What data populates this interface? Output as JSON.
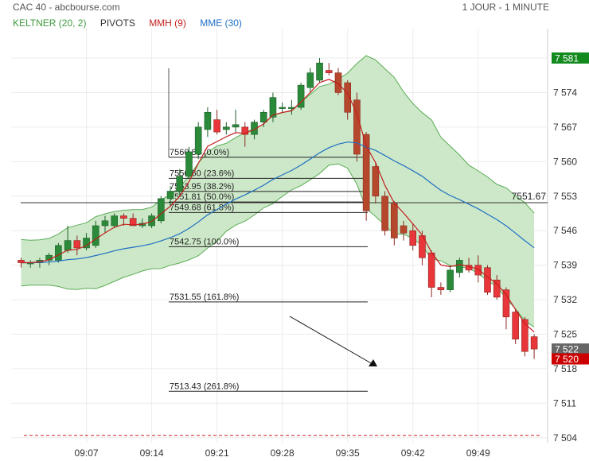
{
  "header": {
    "instrument": "CAC 40 - abcbourse.com",
    "period": "1 JOUR - 1 MINUTE"
  },
  "legend": [
    {
      "label": "KELTNER (20, 2)",
      "color": "#3c9a3c"
    },
    {
      "label": "PIVOTS",
      "color": "#333333"
    },
    {
      "label": "MMH (9)",
      "color": "#c41e1e"
    },
    {
      "label": "MME (30)",
      "color": "#1f6fc4"
    }
  ],
  "chart_data": {
    "type": "candlestick",
    "yticks": [
      "7 504",
      "7 511",
      "7 518",
      "7 525",
      "7 532",
      "7 539",
      "7 546",
      "7 553",
      "7 560",
      "7 567",
      "7 574",
      "7 581"
    ],
    "ylim": [
      7503,
      7586
    ],
    "xticks": [
      {
        "label": "09:07",
        "minute": 547
      },
      {
        "label": "09:14",
        "minute": 554
      },
      {
        "label": "09:21",
        "minute": 561
      },
      {
        "label": "09:28",
        "minute": 568
      },
      {
        "label": "09:35",
        "minute": 575
      },
      {
        "label": "09:42",
        "minute": 582
      },
      {
        "label": "09:49",
        "minute": 589
      }
    ],
    "candles": [
      {
        "o": 7540.0,
        "h": 7540.5,
        "l": 7538.5,
        "c": 7539.5
      },
      {
        "o": 7539.5,
        "h": 7540.0,
        "l": 7538.5,
        "c": 7539.5
      },
      {
        "o": 7539.5,
        "h": 7540.5,
        "l": 7538.5,
        "c": 7540.0
      },
      {
        "o": 7540.0,
        "h": 7541.5,
        "l": 7539.0,
        "c": 7541.0
      },
      {
        "o": 7540.0,
        "h": 7543.5,
        "l": 7539.5,
        "c": 7543.0
      },
      {
        "o": 7542.0,
        "h": 7547.0,
        "l": 7541.5,
        "c": 7544.0
      },
      {
        "o": 7544.0,
        "h": 7545.0,
        "l": 7541.0,
        "c": 7542.5
      },
      {
        "o": 7542.5,
        "h": 7545.5,
        "l": 7542.0,
        "c": 7544.5
      },
      {
        "o": 7543.0,
        "h": 7548.0,
        "l": 7542.5,
        "c": 7547.0
      },
      {
        "o": 7547.0,
        "h": 7549.0,
        "l": 7545.5,
        "c": 7548.0
      },
      {
        "o": 7547.0,
        "h": 7549.5,
        "l": 7546.5,
        "c": 7549.0
      },
      {
        "o": 7549.0,
        "h": 7549.5,
        "l": 7547.0,
        "c": 7548.5
      },
      {
        "o": 7548.5,
        "h": 7549.5,
        "l": 7547.0,
        "c": 7547.0
      },
      {
        "o": 7547.0,
        "h": 7548.5,
        "l": 7546.5,
        "c": 7547.5
      },
      {
        "o": 7547.0,
        "h": 7549.5,
        "l": 7546.5,
        "c": 7549.0
      },
      {
        "o": 7548.0,
        "h": 7553.0,
        "l": 7547.5,
        "c": 7552.5
      },
      {
        "o": 7552.5,
        "h": 7555.0,
        "l": 7551.0,
        "c": 7554.0
      },
      {
        "o": 7554.0,
        "h": 7558.5,
        "l": 7553.0,
        "c": 7557.0
      },
      {
        "o": 7557.0,
        "h": 7563.0,
        "l": 7556.5,
        "c": 7562.0
      },
      {
        "o": 7561.5,
        "h": 7568.0,
        "l": 7560.5,
        "c": 7567.0
      },
      {
        "o": 7566.5,
        "h": 7571.0,
        "l": 7565.0,
        "c": 7570.0
      },
      {
        "o": 7568.5,
        "h": 7570.5,
        "l": 7565.5,
        "c": 7566.0
      },
      {
        "o": 7566.5,
        "h": 7568.0,
        "l": 7565.5,
        "c": 7567.0
      },
      {
        "o": 7567.0,
        "h": 7570.5,
        "l": 7566.0,
        "c": 7567.5
      },
      {
        "o": 7567.0,
        "h": 7568.0,
        "l": 7563.0,
        "c": 7565.5
      },
      {
        "o": 7565.5,
        "h": 7568.5,
        "l": 7564.5,
        "c": 7568.0
      },
      {
        "o": 7568.0,
        "h": 7570.5,
        "l": 7567.0,
        "c": 7570.0
      },
      {
        "o": 7569.0,
        "h": 7574.0,
        "l": 7568.0,
        "c": 7573.0
      },
      {
        "o": 7571.0,
        "h": 7572.0,
        "l": 7570.0,
        "c": 7571.0
      },
      {
        "o": 7571.0,
        "h": 7572.5,
        "l": 7569.5,
        "c": 7571.0
      },
      {
        "o": 7571.0,
        "h": 7576.0,
        "l": 7570.5,
        "c": 7575.5
      },
      {
        "o": 7575.0,
        "h": 7579.0,
        "l": 7574.0,
        "c": 7578.0
      },
      {
        "o": 7576.5,
        "h": 7581.0,
        "l": 7576.0,
        "c": 7580.0
      },
      {
        "o": 7578.5,
        "h": 7580.0,
        "l": 7577.5,
        "c": 7578.0
      },
      {
        "o": 7578.0,
        "h": 7579.0,
        "l": 7573.5,
        "c": 7574.0
      },
      {
        "o": 7576.0,
        "h": 7576.5,
        "l": 7568.5,
        "c": 7570.0
      },
      {
        "o": 7572.5,
        "h": 7574.0,
        "l": 7560.0,
        "c": 7561.5
      },
      {
        "o": 7565.5,
        "h": 7566.0,
        "l": 7548.0,
        "c": 7550.0
      },
      {
        "o": 7559.0,
        "h": 7560.0,
        "l": 7551.5,
        "c": 7553.0
      },
      {
        "o": 7553.0,
        "h": 7554.0,
        "l": 7545.0,
        "c": 7546.0
      },
      {
        "o": 7551.5,
        "h": 7552.0,
        "l": 7543.0,
        "c": 7544.5
      },
      {
        "o": 7547.0,
        "h": 7548.0,
        "l": 7544.0,
        "c": 7545.5
      },
      {
        "o": 7546.0,
        "h": 7547.5,
        "l": 7542.0,
        "c": 7543.0
      },
      {
        "o": 7545.0,
        "h": 7546.0,
        "l": 7539.0,
        "c": 7540.5
      },
      {
        "o": 7541.5,
        "h": 7542.0,
        "l": 7532.5,
        "c": 7534.5
      },
      {
        "o": 7534.5,
        "h": 7535.5,
        "l": 7533.0,
        "c": 7534.0
      },
      {
        "o": 7534.0,
        "h": 7539.0,
        "l": 7533.5,
        "c": 7538.0
      },
      {
        "o": 7537.5,
        "h": 7540.5,
        "l": 7536.5,
        "c": 7540.0
      },
      {
        "o": 7539.0,
        "h": 7540.5,
        "l": 7537.5,
        "c": 7538.0
      },
      {
        "o": 7539.0,
        "h": 7541.0,
        "l": 7535.5,
        "c": 7537.0
      },
      {
        "o": 7538.5,
        "h": 7539.0,
        "l": 7533.0,
        "c": 7533.5
      },
      {
        "o": 7536.0,
        "h": 7537.0,
        "l": 7532.0,
        "c": 7532.5
      },
      {
        "o": 7534.0,
        "h": 7534.5,
        "l": 7526.0,
        "c": 7528.5
      },
      {
        "o": 7529.5,
        "h": 7530.0,
        "l": 7523.0,
        "c": 7524.0
      },
      {
        "o": 7528.0,
        "h": 7528.5,
        "l": 7520.5,
        "c": 7521.5
      },
      {
        "o": 7524.5,
        "h": 7525.0,
        "l": 7520.0,
        "c": 7522.0
      }
    ],
    "fibonacci": [
      {
        "price": 7560.88,
        "label": "7560.88",
        "ratio": "(0.0%)"
      },
      {
        "price": 7556.6,
        "label": "7556.60",
        "ratio": "(23.6%)"
      },
      {
        "price": 7553.95,
        "label": "7553.95",
        "ratio": "(38.2%)"
      },
      {
        "price": 7551.81,
        "label": "7551.81",
        "ratio": "(50.0%)"
      },
      {
        "price": 7549.68,
        "label": "7549.68",
        "ratio": "(61.8%)"
      },
      {
        "price": 7542.75,
        "label": "7542.75",
        "ratio": "(100.0%)"
      },
      {
        "price": 7531.55,
        "label": "7531.55",
        "ratio": "(161.8%)"
      },
      {
        "price": 7513.43,
        "label": "7513.43",
        "ratio": "(261.8%)"
      }
    ],
    "pivot": {
      "price": 7551.67,
      "label": "7551.67"
    },
    "dashed_level": 7504.5,
    "badges": [
      {
        "price": 7581,
        "label": "7 581",
        "color": "#138a1e"
      },
      {
        "price": 7522,
        "label": "7 522",
        "color": "#666666"
      },
      {
        "price": 7520,
        "label": "7 520",
        "color": "#cc0000"
      }
    ],
    "colors": {
      "up": "#2a8a3a",
      "down": "#e8363a",
      "down_dark": "#b5482c",
      "keltner_fill": "#cde8c8",
      "keltner_line": "#5aac54",
      "mmh": "#c41e1e",
      "mme": "#1f6fc4"
    }
  }
}
